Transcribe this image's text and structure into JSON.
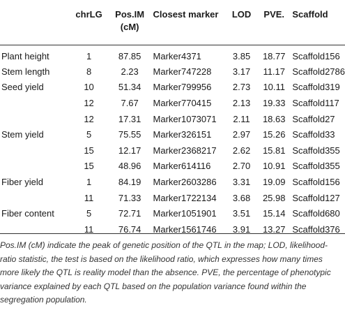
{
  "headers": {
    "trait": "",
    "chrlg": "chrLG",
    "pos": "Pos.IM (cM)",
    "marker": "Closest marker",
    "lod": "LOD",
    "pve": "PVE.",
    "scaffold": "Scaffold"
  },
  "rows": [
    {
      "trait": "Plant height",
      "chrlg": "1",
      "pos": "87.85",
      "marker": "Marker4371",
      "lod": "3.85",
      "pve": "18.77",
      "scaffold": "Scaffold156"
    },
    {
      "trait": "Stem length",
      "chrlg": "8",
      "pos": "2.23",
      "marker": "Marker747228",
      "lod": "3.17",
      "pve": "11.17",
      "scaffold": "Scaffold2786"
    },
    {
      "trait": "Seed yield",
      "chrlg": "10",
      "pos": "51.34",
      "marker": "Marker799956",
      "lod": "2.73",
      "pve": "10.11",
      "scaffold": "Scaffold319"
    },
    {
      "trait": "",
      "chrlg": "12",
      "pos": "7.67",
      "marker": "Marker770415",
      "lod": "2.13",
      "pve": "19.33",
      "scaffold": "Scaffold117"
    },
    {
      "trait": "",
      "chrlg": "12",
      "pos": "17.31",
      "marker": "Marker1073071",
      "lod": "2.11",
      "pve": "18.63",
      "scaffold": "Scaffold27"
    },
    {
      "trait": "Stem yield",
      "chrlg": "5",
      "pos": "75.55",
      "marker": "Marker326151",
      "lod": "2.97",
      "pve": "15.26",
      "scaffold": "Scaffold33"
    },
    {
      "trait": "",
      "chrlg": "15",
      "pos": "12.17",
      "marker": "Marker2368217",
      "lod": "2.62",
      "pve": "15.81",
      "scaffold": "Scaffold355"
    },
    {
      "trait": "",
      "chrlg": "15",
      "pos": "48.96",
      "marker": "Marker614116",
      "lod": "2.70",
      "pve": "10.91",
      "scaffold": "Scaffold355"
    },
    {
      "trait": "Fiber yield",
      "chrlg": "1",
      "pos": "84.19",
      "marker": "Marker2603286",
      "lod": "3.31",
      "pve": "19.09",
      "scaffold": "Scaffold156"
    },
    {
      "trait": "",
      "chrlg": "11",
      "pos": "71.33",
      "marker": "Marker1722134",
      "lod": "3.68",
      "pve": "25.98",
      "scaffold": "Scaffold127"
    },
    {
      "trait": "Fiber content",
      "chrlg": "5",
      "pos": "72.71",
      "marker": "Marker1051901",
      "lod": "3.51",
      "pve": "15.14",
      "scaffold": "Scaffold680"
    },
    {
      "trait": "",
      "chrlg": "11",
      "pos": "76.74",
      "marker": "Marker1561746",
      "lod": "3.91",
      "pve": "13.27",
      "scaffold": "Scaffold376"
    }
  ],
  "note": "Pos.IM (cM) indicate the peak of genetic position of the QTL in the map; LOD, likelihood-ratio statistic, the test is based on the likelihood ratio, which expresses how many times more likely the QTL is reality model than the absence. PVE, the percentage of phenotypic variance explained by each QTL based on the population variance found within the segregation population."
}
